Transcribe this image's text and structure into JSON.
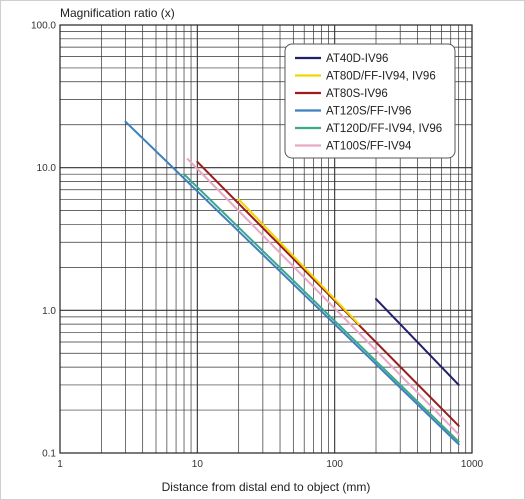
{
  "chart_data": {
    "type": "line",
    "ylabel": "Magnification ratio (x)",
    "xlabel": "Distance from distal end to object (mm)",
    "x_scale": "log",
    "y_scale": "log",
    "xlim": [
      1,
      1000
    ],
    "ylim": [
      0.1,
      100
    ],
    "grid": true,
    "legend_position": "top-right",
    "x_tick_labels": [
      "1",
      "10",
      "100",
      "1000"
    ],
    "y_tick_labels": [
      "0.1",
      "1.0",
      "10.0",
      "100.0"
    ],
    "series": [
      {
        "name": "AT40D-IV96",
        "color": "#1f1f6b",
        "x": [
          200,
          800
        ],
        "y": [
          1.2,
          0.3
        ]
      },
      {
        "name": "AT80D/FF-IV94, IV96",
        "color": "#f2d600",
        "x": [
          20,
          150
        ],
        "y": [
          6.0,
          0.8
        ]
      },
      {
        "name": "AT80S-IV96",
        "color": "#9a1c1c",
        "x": [
          10,
          800
        ],
        "y": [
          11.0,
          0.155
        ]
      },
      {
        "name": "AT120S/FF-IV96",
        "color": "#3f7fc0",
        "x": [
          3,
          800
        ],
        "y": [
          21.0,
          0.115
        ]
      },
      {
        "name": "AT120D/FF-IV94, IV96",
        "color": "#3aa889",
        "x": [
          8,
          800
        ],
        "y": [
          9.0,
          0.12
        ]
      },
      {
        "name": "AT100S/FF-IV94",
        "color": "#e8a8c4",
        "x": [
          8.5,
          800
        ],
        "y": [
          11.5,
          0.135
        ]
      }
    ]
  }
}
